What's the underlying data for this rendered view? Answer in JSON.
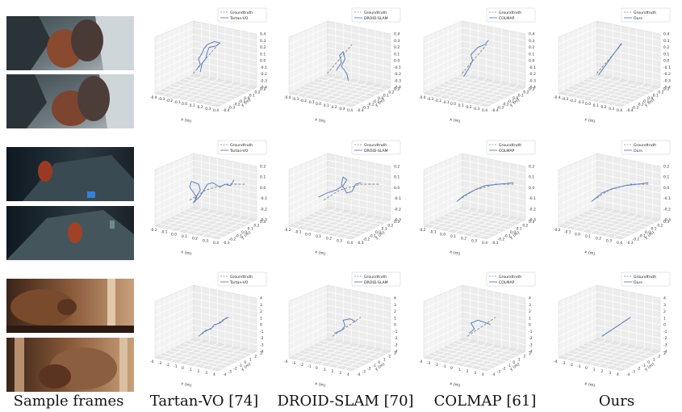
{
  "captions": {
    "frames": "Sample frames",
    "tartan": "Tartan-VO [74]",
    "droid": "DROID-SLAM [70]",
    "colmap": "COLMAP [61]",
    "ours": "Ours"
  },
  "legend": {
    "groundtruth": "Groundtruth",
    "methods": [
      "Tartan-VO",
      "DROID-SLAM",
      "COLMAP",
      "Ours"
    ]
  },
  "axes": {
    "xlabel": "x (m)",
    "ylabel": "y (m)"
  },
  "colors": {
    "groundtruth": "#888888",
    "estimate": "#5b7fbf"
  },
  "chart_data": [
    {
      "type": "line",
      "scene": 1,
      "xlim": [
        -0.4,
        0.4
      ],
      "ylim": [
        -0.4,
        0.3
      ],
      "zlim": [
        -0.4,
        0.4
      ],
      "x_ticks": [
        "-0.4",
        "-0.3",
        "-0.2",
        "-0.1",
        "0.0",
        "0.1",
        "0.2",
        "0.3",
        "0.4"
      ],
      "y_ticks": [
        "0.3",
        "0.2",
        "0.1",
        "0.0",
        "-0.1",
        "-0.2",
        "-0.3",
        "-0.4"
      ],
      "z_ticks": [
        "0.4",
        "0.3",
        "0.2",
        "0.1",
        "0.0",
        "-0.1",
        "-0.2",
        "-0.3",
        "-0.4"
      ],
      "series": [
        {
          "name": "Groundtruth"
        },
        {
          "name": "Tartan-VO"
        },
        {
          "name": "DROID-SLAM"
        },
        {
          "name": "COLMAP"
        },
        {
          "name": "Ours"
        }
      ]
    },
    {
      "type": "line",
      "scene": 2,
      "xlim": [
        -0.2,
        0.4
      ],
      "ylim": [
        -0.3,
        0.3
      ],
      "zlim": [
        -0.3,
        0.2
      ],
      "x_ticks": [
        "-0.2",
        "-0.1",
        "0.0",
        "0.1",
        "0.2",
        "0.3",
        "0.4"
      ],
      "y_ticks": [
        "0.3",
        "0.2",
        "0.1",
        "0.0",
        "-0.1",
        "-0.2",
        "-0.3"
      ],
      "z_ticks": [
        "0.2",
        "0.1",
        "0.0",
        "-0.1",
        "-0.2",
        "-0.3"
      ],
      "series": [
        {
          "name": "Groundtruth"
        },
        {
          "name": "Tartan-VO"
        },
        {
          "name": "DROID-SLAM"
        },
        {
          "name": "COLMAP"
        },
        {
          "name": "Ours"
        }
      ]
    },
    {
      "type": "line",
      "scene": 3,
      "xlim": [
        -4,
        4
      ],
      "ylim": [
        -4,
        4
      ],
      "zlim": [
        -4,
        4
      ],
      "x_ticks": [
        "-4",
        "-3",
        "-2",
        "-1",
        "0",
        "1",
        "2",
        "3",
        "4"
      ],
      "y_ticks": [
        "3",
        "2",
        "1",
        "0",
        "-1",
        "-2",
        "-3",
        "-4"
      ],
      "z_ticks": [
        "4",
        "3",
        "2",
        "1",
        "0",
        "-1",
        "-2",
        "-3",
        "-4"
      ],
      "series": [
        {
          "name": "Groundtruth"
        },
        {
          "name": "Tartan-VO"
        },
        {
          "name": "DROID-SLAM"
        },
        {
          "name": "COLMAP"
        },
        {
          "name": "Ours"
        }
      ]
    }
  ]
}
